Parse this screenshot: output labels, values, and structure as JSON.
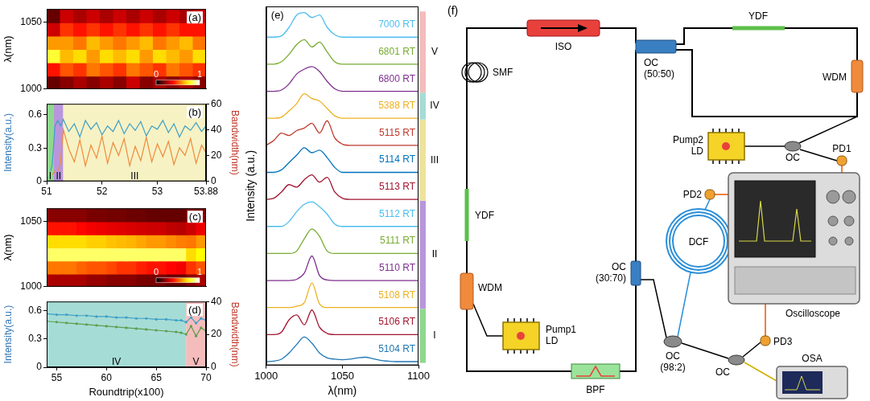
{
  "chart_data": [
    {
      "panel": "(a)",
      "type": "heatmap",
      "y_label": "λ(nm)",
      "x_bins": [
        51,
        51.24,
        51.48,
        51.72,
        51.96,
        52.2,
        52.44,
        52.68,
        52.92,
        53.16,
        53.4,
        53.64,
        53.88
      ],
      "y_bins": [
        1000,
        1010,
        1020,
        1030,
        1040,
        1050,
        1060
      ],
      "z": [
        [
          0.15,
          0.2,
          0.25,
          0.2,
          0.25,
          0.2,
          0.3,
          0.2,
          0.25,
          0.2,
          0.25,
          0.2
        ],
        [
          0.4,
          0.5,
          0.45,
          0.55,
          0.5,
          0.45,
          0.55,
          0.5,
          0.45,
          0.55,
          0.5,
          0.45
        ],
        [
          0.8,
          0.65,
          0.7,
          0.6,
          0.7,
          0.65,
          0.7,
          0.6,
          0.7,
          0.65,
          0.6,
          0.7
        ],
        [
          0.6,
          0.6,
          0.55,
          0.65,
          0.6,
          0.55,
          0.6,
          0.65,
          0.55,
          0.6,
          0.65,
          0.55
        ],
        [
          0.3,
          0.45,
          0.4,
          0.45,
          0.4,
          0.45,
          0.4,
          0.45,
          0.4,
          0.45,
          0.4,
          0.4
        ],
        [
          0.15,
          0.3,
          0.25,
          0.3,
          0.25,
          0.3,
          0.25,
          0.3,
          0.25,
          0.3,
          0.25,
          0.3
        ]
      ],
      "xlim": [
        51,
        53.88
      ],
      "ylim": [
        1000,
        1060
      ],
      "yticks": [
        1000,
        1050
      ],
      "colorbar": {
        "range": [
          0,
          1
        ],
        "ticks": [
          0,
          1
        ]
      },
      "tick_labels": "y",
      "grid": false
    },
    {
      "panel": "(b)",
      "type": "line",
      "y_label": "Intensity(a.u.)",
      "y2_label": "Bandwidth(nm)",
      "x": [
        51,
        51.05,
        51.1,
        51.15,
        51.2,
        51.25,
        51.3,
        51.4,
        51.5,
        51.6,
        51.7,
        51.8,
        51.9,
        52.0,
        52.1,
        52.2,
        52.3,
        52.4,
        52.5,
        52.6,
        52.7,
        52.8,
        52.9,
        53.0,
        53.1,
        53.2,
        53.3,
        53.4,
        53.5,
        53.6,
        53.7,
        53.8,
        53.88
      ],
      "series": [
        {
          "color": "#3e9fc6",
          "values": [
            0.02,
            0.05,
            0.15,
            0.5,
            0.55,
            0.5,
            0.56,
            0.45,
            0.52,
            0.4,
            0.55,
            0.47,
            0.53,
            0.42,
            0.5,
            0.45,
            0.55,
            0.43,
            0.52,
            0.46,
            0.54,
            0.41,
            0.5,
            0.47,
            0.55,
            0.44,
            0.52,
            0.4,
            0.5,
            0.46,
            0.53,
            0.45,
            0.5
          ]
        },
        {
          "color": "#f08a3c",
          "axis": "y2",
          "values": [
            2,
            3,
            5,
            8,
            6,
            15,
            40,
            25,
            15,
            32,
            12,
            28,
            18,
            35,
            14,
            30,
            20,
            33,
            12,
            27,
            16,
            34,
            15,
            29,
            19,
            31,
            13,
            26,
            20,
            33,
            14,
            28,
            22
          ]
        }
      ],
      "regions": [
        {
          "label": "I",
          "from": 51,
          "to": 51.13,
          "color": "#8fd88f"
        },
        {
          "label": "II",
          "from": 51.13,
          "to": 51.3,
          "color": "#b996dc"
        },
        {
          "label": "III",
          "from": 51.3,
          "to": 53.88,
          "color": "#f7f2c4"
        }
      ],
      "xlim": [
        51,
        53.88
      ],
      "xticks": [
        51,
        52,
        53,
        53.88
      ],
      "ylim": [
        0,
        0.7
      ],
      "yticks": [
        0,
        0.3,
        0.6
      ],
      "y2lim": [
        0,
        60
      ],
      "y2ticks": [
        0,
        20,
        40,
        60
      ],
      "grid": false
    },
    {
      "panel": "(c)",
      "type": "heatmap",
      "y_label": "λ(nm)",
      "x_bins": [
        54,
        55,
        56,
        57,
        58,
        59,
        60,
        61,
        62,
        63,
        64,
        65,
        66,
        67,
        68,
        69,
        70
      ],
      "y_bins": [
        1000,
        1010,
        1020,
        1030,
        1040,
        1050,
        1060
      ],
      "z": [
        [
          0.25,
          0.25,
          0.25,
          0.25,
          0.22,
          0.22,
          0.2,
          0.2,
          0.2,
          0.18,
          0.18,
          0.18,
          0.15,
          0.15,
          0.2,
          0.25
        ],
        [
          0.55,
          0.55,
          0.55,
          0.52,
          0.5,
          0.5,
          0.48,
          0.45,
          0.45,
          0.42,
          0.4,
          0.4,
          0.38,
          0.36,
          0.45,
          0.5
        ],
        [
          0.85,
          0.85,
          0.85,
          0.85,
          0.85,
          0.85,
          0.85,
          0.85,
          0.85,
          0.85,
          0.85,
          0.85,
          0.85,
          0.85,
          0.7,
          0.75
        ],
        [
          0.7,
          0.7,
          0.7,
          0.7,
          0.68,
          0.68,
          0.66,
          0.65,
          0.64,
          0.62,
          0.6,
          0.6,
          0.58,
          0.56,
          0.55,
          0.6
        ],
        [
          0.4,
          0.4,
          0.4,
          0.38,
          0.36,
          0.35,
          0.34,
          0.33,
          0.32,
          0.31,
          0.3,
          0.3,
          0.28,
          0.27,
          0.3,
          0.35
        ],
        [
          0.2,
          0.2,
          0.2,
          0.2,
          0.18,
          0.18,
          0.17,
          0.17,
          0.16,
          0.16,
          0.15,
          0.15,
          0.15,
          0.15,
          0.2,
          0.2
        ]
      ],
      "xlim": [
        54,
        70
      ],
      "ylim": [
        1000,
        1060
      ],
      "yticks": [
        1000,
        1050
      ],
      "colorbar": {
        "range": [
          0,
          1
        ],
        "ticks": [
          0,
          1
        ]
      },
      "tick_labels": "y",
      "grid": false
    },
    {
      "panel": "(d)",
      "type": "line",
      "x_label": "Roundtrip(x100)",
      "y_label": "Intensity(a.u.)",
      "y2_label": "Bandwidth(nm)",
      "x": [
        54,
        55,
        56,
        57,
        58,
        59,
        60,
        61,
        62,
        63,
        64,
        65,
        66,
        67,
        67.5,
        68,
        68.5,
        69,
        69.5,
        70
      ],
      "series": [
        {
          "color": "#3e9fc6",
          "marker": "circle",
          "values": [
            0.57,
            0.56,
            0.56,
            0.55,
            0.55,
            0.54,
            0.54,
            0.53,
            0.53,
            0.52,
            0.52,
            0.51,
            0.51,
            0.5,
            0.5,
            0.48,
            0.53,
            0.47,
            0.52,
            0.5
          ]
        },
        {
          "color": "#5e9e4e",
          "marker": "circle",
          "axis": "y2",
          "values": [
            28,
            27.5,
            27,
            26.5,
            26,
            25.5,
            25,
            24.5,
            24,
            23.5,
            23,
            22.5,
            22,
            21.5,
            21,
            20,
            25,
            19,
            24,
            22
          ]
        }
      ],
      "regions": [
        {
          "label": "IV",
          "from": 54,
          "to": 68,
          "color": "#a6dcd6"
        },
        {
          "label": "V",
          "from": 68,
          "to": 70,
          "color": "#f5bcbc"
        }
      ],
      "xlim": [
        54,
        70
      ],
      "xticks": [
        55,
        60,
        65,
        70
      ],
      "ylim": [
        0,
        0.7
      ],
      "yticks": [
        0,
        0.3,
        0.6
      ],
      "y2lim": [
        0,
        40
      ],
      "y2ticks": [
        0,
        20,
        40
      ],
      "grid": false
    },
    {
      "panel": "(e)",
      "type": "line",
      "x_label": "λ(nm)",
      "y_label": "Intensity (a.u.)",
      "x": [
        1000,
        1005,
        1010,
        1015,
        1020,
        1025,
        1030,
        1035,
        1040,
        1045,
        1050,
        1055,
        1060,
        1065,
        1070,
        1075,
        1080,
        1085,
        1090,
        1095,
        1100
      ],
      "series": [
        {
          "name": "5104 RT",
          "color": "#1f77b4",
          "values": [
            0,
            0.02,
            0.1,
            0.35,
            0.7,
            1,
            0.75,
            0.35,
            0.15,
            0.1,
            0.08,
            0.1,
            0.15,
            0.18,
            0.12,
            0.05,
            0.02,
            0,
            0,
            0,
            0
          ]
        },
        {
          "name": "5106 RT",
          "color": "#a2142f",
          "values": [
            0,
            0,
            0.1,
            0.6,
            0.8,
            0.4,
            1,
            0.3,
            0.05,
            0,
            0,
            0,
            0,
            0,
            0,
            0,
            0,
            0,
            0,
            0,
            0
          ]
        },
        {
          "name": "5108 RT",
          "color": "#edb120",
          "values": [
            0,
            0,
            0,
            0,
            0.05,
            0.2,
            1,
            0.15,
            0,
            0,
            0,
            0,
            0,
            0,
            0,
            0,
            0,
            0,
            0,
            0,
            0
          ]
        },
        {
          "name": "5110 RT",
          "color": "#7e2f8e",
          "values": [
            0,
            0,
            0,
            0,
            0.05,
            0.3,
            1,
            0.2,
            0.02,
            0,
            0,
            0,
            0,
            0,
            0,
            0,
            0,
            0,
            0,
            0,
            0
          ]
        },
        {
          "name": "5111 RT",
          "color": "#77ac30",
          "values": [
            0,
            0,
            0,
            0,
            0.1,
            0.6,
            1,
            0.7,
            0.1,
            0,
            0,
            0,
            0,
            0,
            0,
            0,
            0,
            0,
            0,
            0,
            0
          ]
        },
        {
          "name": "5112 RT",
          "color": "#4dbeee",
          "values": [
            0,
            0,
            0,
            0.2,
            0.6,
            0.9,
            1,
            0.8,
            0.5,
            0.1,
            0,
            0,
            0,
            0,
            0,
            0,
            0,
            0,
            0,
            0,
            0
          ]
        },
        {
          "name": "5113 RT",
          "color": "#a2142f",
          "values": [
            0,
            0.05,
            0.3,
            0.6,
            0.5,
            0.8,
            1,
            0.7,
            0.9,
            0.3,
            0.05,
            0,
            0,
            0,
            0,
            0,
            0,
            0,
            0,
            0,
            0
          ]
        },
        {
          "name": "5114 RT",
          "color": "#0072bd",
          "values": [
            0,
            0,
            0.1,
            0.4,
            0.7,
            1,
            0.8,
            0.9,
            0.6,
            0.2,
            0,
            0,
            0,
            0,
            0,
            0,
            0,
            0,
            0,
            0,
            0
          ]
        },
        {
          "name": "5115 RT",
          "color": "#c0392b",
          "values": [
            0,
            0.2,
            0.5,
            0.4,
            0.6,
            0.7,
            0.9,
            0.5,
            1,
            0.3,
            0.05,
            0,
            0,
            0,
            0,
            0,
            0,
            0,
            0,
            0,
            0
          ]
        },
        {
          "name": "5388 RT",
          "color": "#edb120",
          "values": [
            0,
            0,
            0.05,
            0.3,
            0.6,
            1,
            0.8,
            0.7,
            0.4,
            0.1,
            0,
            0,
            0,
            0,
            0,
            0,
            0,
            0,
            0,
            0,
            0
          ]
        },
        {
          "name": "6800 RT",
          "color": "#7e2f8e",
          "values": [
            0,
            0,
            0.05,
            0.3,
            0.7,
            0.9,
            1,
            0.8,
            0.4,
            0.1,
            0,
            0,
            0,
            0,
            0,
            0,
            0,
            0,
            0,
            0,
            0
          ]
        },
        {
          "name": "6801 RT",
          "color": "#77ac30",
          "values": [
            0,
            0,
            0.1,
            0.4,
            0.8,
            1,
            0.7,
            0.9,
            0.5,
            0.1,
            0,
            0,
            0,
            0,
            0,
            0,
            0,
            0,
            0,
            0,
            0
          ]
        },
        {
          "name": "7000 RT",
          "color": "#4dbeee",
          "values": [
            0,
            0,
            0.05,
            0.4,
            0.9,
            1,
            0.8,
            0.9,
            0.4,
            0.1,
            0,
            0,
            0,
            0,
            0,
            0,
            0,
            0,
            0,
            0,
            0
          ]
        }
      ],
      "groups": [
        {
          "label": "I",
          "from": "5104 RT",
          "to": "5106 RT",
          "color": "#8fd88f"
        },
        {
          "label": "II",
          "from": "5108 RT",
          "to": "5112 RT",
          "color": "#b996dc"
        },
        {
          "label": "III",
          "from": "5113 RT",
          "to": "5115 RT",
          "color": "#eee39a"
        },
        {
          "label": "IV",
          "from": "5388 RT",
          "to": "5388 RT",
          "color": "#a6dcd6"
        },
        {
          "label": "V",
          "from": "6800 RT",
          "to": "7000 RT",
          "color": "#f5bcbc"
        }
      ],
      "xlim": [
        1000,
        1100
      ],
      "xticks": [
        1000,
        1050,
        1100
      ],
      "tick_labels": "x",
      "grid": false
    }
  ],
  "diagram": {
    "panel": "(f)",
    "components": {
      "iso": "ISO",
      "smf": "SMF",
      "ydf_main": "YDF",
      "ydf_loop": "YDF",
      "wdm_main": "WDM",
      "wdm_loop": "WDM",
      "pump1": "Pump1 LD",
      "pump2": "Pump2 LD",
      "oc_5050": "OC (50:50)",
      "oc_3070": "OC (30:70)",
      "oc_982": "OC (98:2)",
      "oc_pump2": "OC",
      "oc_osa": "OC",
      "bpf": "BPF",
      "dcf": "DCF",
      "pd1": "PD1",
      "pd2": "PD2",
      "pd3": "PD3",
      "scope": "Oscilloscope",
      "osa": "OSA"
    }
  }
}
